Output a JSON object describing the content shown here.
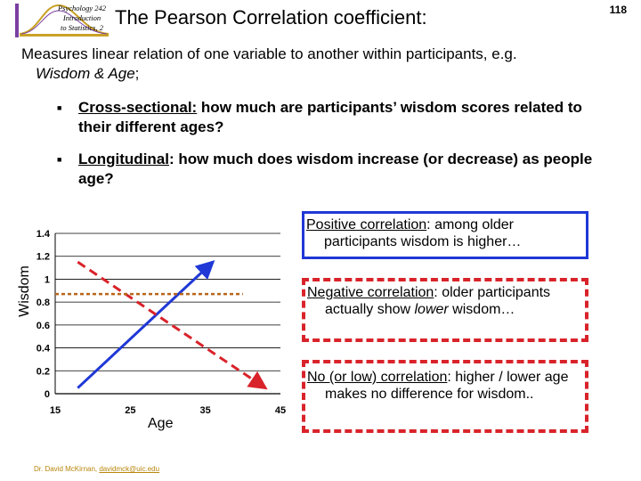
{
  "header": {
    "course_lines": [
      "Psychology 242",
      "Introduction",
      "to Statistics, 2"
    ],
    "title": "The Pearson Correlation coefficient:",
    "page_number": "118"
  },
  "intro": {
    "text_before": "Measures linear relation of one variable to another within participants, e.g. ",
    "example": "Wisdom & Age",
    "text_after": ";"
  },
  "bullets": [
    {
      "term": "Cross-sectional:",
      "text": " how much are participants’ wisdom scores related to their different ages?"
    },
    {
      "term": "Longitudinal",
      "text": ": how much does wisdom increase (or decrease) as people age?"
    }
  ],
  "chart_data": {
    "type": "line",
    "xlabel": "Age",
    "ylabel": "Wisdom",
    "x_ticks": [
      "15",
      "25",
      "35",
      "45"
    ],
    "y_ticks": [
      "0",
      "0.2",
      "0.4",
      "0.6",
      "0.8",
      "1",
      "1.2",
      "1.4"
    ],
    "xlim": [
      15,
      45
    ],
    "ylim": [
      0,
      1.4
    ],
    "grid": true,
    "series": [
      {
        "x": [
          18,
          36
        ],
        "y": [
          0.05,
          1.15
        ],
        "color": "#1f38d6",
        "style": "solid",
        "marker": "arrow"
      },
      {
        "x": [
          18,
          43
        ],
        "y": [
          1.15,
          0.05
        ],
        "color": "#d9232a",
        "style": "dashed",
        "marker": "arrow"
      },
      {
        "x": [
          15,
          40
        ],
        "y": [
          0.87,
          0.87
        ],
        "color": "#b8651b",
        "style": "dotted",
        "marker": "none"
      }
    ]
  },
  "callouts": {
    "positive": {
      "term": "Positive correlation",
      "text": ": among older participants wisdom is higher…"
    },
    "negative": {
      "term": "Negative correlation",
      "text_before": ": older participants actually show ",
      "emph": "lower",
      "text_after": " wisdom…"
    },
    "none": {
      "term": "No (or low) correlation",
      "text": ": higher / lower age makes no difference for wisdom.."
    }
  },
  "footer": {
    "author": "Dr. David McKirnan, ",
    "email": "davidmck@uic.edu"
  },
  "colors": {
    "positive": "#1f38d6",
    "negative": "#d9232a",
    "none": "#b8651b"
  }
}
